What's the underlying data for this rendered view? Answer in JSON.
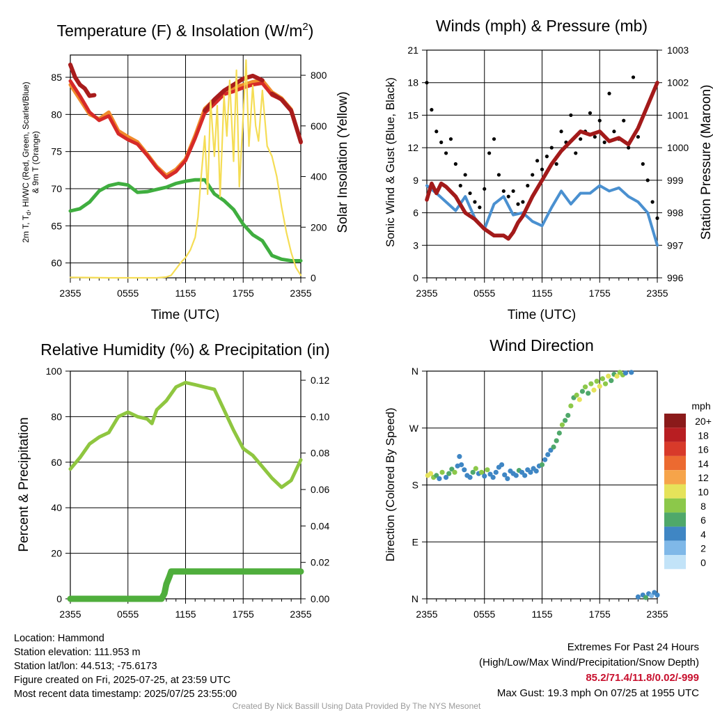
{
  "chart_data": [
    {
      "type": "line",
      "title": "Temperature (F) & Insolation (W/m²)",
      "xlabel": "Time (UTC)",
      "ylabel": "2m T, T_d, HI/WC (Red, Green, Scarlet/Blue) & 9m T (Orange)",
      "y2label": "Solar Insolation (Yellow)",
      "x_ticks": [
        "2355",
        "0555",
        "1155",
        "1755",
        "2355"
      ],
      "ylim": [
        58,
        88
      ],
      "y_ticks": [
        60,
        65,
        70,
        75,
        80,
        85
      ],
      "y2lim": [
        0,
        880
      ],
      "y2_ticks": [
        0,
        200,
        400,
        600,
        800
      ],
      "grid": true,
      "colors": {
        "temp": "#d62a28",
        "heat_index": "#a81c1c",
        "dewpoint": "#3fae3f",
        "temp9m": "#f08b2c",
        "insolation": "#f5dd55"
      },
      "series": [
        {
          "key": "temp",
          "axis": "left",
          "x": [
            0,
            1,
            2,
            3,
            4,
            5,
            6,
            7,
            8,
            9,
            10,
            11,
            12,
            13,
            14,
            15,
            16,
            17,
            18,
            19,
            20,
            21,
            22,
            23,
            24
          ],
          "y": [
            84.5,
            82.5,
            80.3,
            79.2,
            79.8,
            77.4,
            76.6,
            76.0,
            74.5,
            72.8,
            71.5,
            72.3,
            73.8,
            76.8,
            80.2,
            81.4,
            82.7,
            83.1,
            83.6,
            84.0,
            84.2,
            82.6,
            82.0,
            80.5,
            76.2
          ]
        },
        {
          "key": "temp9m",
          "axis": "left",
          "x": [
            0,
            1,
            2,
            3,
            4,
            5,
            6,
            7,
            8,
            9,
            10,
            11,
            12,
            13,
            14,
            15,
            16,
            17,
            18,
            19,
            20,
            21,
            22,
            23,
            24
          ],
          "y": [
            84.0,
            82.0,
            80.0,
            79.4,
            80.3,
            77.8,
            77.0,
            76.3,
            74.7,
            73.0,
            71.8,
            72.6,
            74.0,
            77.2,
            80.8,
            82.0,
            83.2,
            83.6,
            84.0,
            84.4,
            84.6,
            83.0,
            82.2,
            80.7,
            76.4
          ]
        },
        {
          "key": "heat_index",
          "axis": "left",
          "x": [
            0,
            0.5,
            1,
            1.5,
            2,
            2.5,
            3,
            3.4,
            13.6,
            14,
            15,
            16,
            17,
            18,
            19,
            20,
            20.3,
            21,
            22,
            23,
            24
          ],
          "y": [
            86.7,
            85.0,
            84.0,
            83.5,
            82.5,
            82.6,
            null,
            82.0,
            null,
            80.5,
            82.0,
            83.2,
            84.0,
            84.8,
            85.2,
            84.6,
            null,
            82.8,
            82.0,
            80.5,
            76.3
          ]
        },
        {
          "key": "dewpoint",
          "axis": "left",
          "x": [
            0,
            1,
            2,
            3,
            4,
            5,
            6,
            7,
            8,
            9,
            10,
            11,
            12,
            13,
            14,
            15,
            16,
            17,
            18,
            19,
            20,
            21,
            22,
            23,
            24
          ],
          "y": [
            67.0,
            67.3,
            68.2,
            69.7,
            70.4,
            70.7,
            70.5,
            69.5,
            69.6,
            69.9,
            70.2,
            70.7,
            71.0,
            71.2,
            71.2,
            69.3,
            68.4,
            67.2,
            65.2,
            63.8,
            63.0,
            61.0,
            60.5,
            60.3,
            60.3
          ]
        },
        {
          "key": "insolation",
          "axis": "right",
          "x": [
            0,
            2,
            4,
            6,
            8,
            9,
            10,
            10.5,
            11,
            11.5,
            12,
            12.5,
            13,
            13.3,
            13.6,
            14,
            14.3,
            14.6,
            15,
            15.3,
            15.6,
            16,
            16.3,
            16.6,
            17,
            17.3,
            17.6,
            18,
            18.3,
            18.6,
            19,
            19.3,
            19.6,
            20,
            20.5,
            21,
            21.5,
            22,
            22.5,
            23,
            23.5,
            24
          ],
          "y": [
            2,
            1,
            0,
            0,
            0,
            0,
            3,
            10,
            35,
            60,
            80,
            110,
            160,
            240,
            390,
            560,
            330,
            700,
            480,
            680,
            320,
            720,
            560,
            780,
            460,
            820,
            360,
            640,
            860,
            520,
            760,
            600,
            540,
            740,
            520,
            480,
            400,
            280,
            180,
            100,
            40,
            10
          ]
        }
      ]
    },
    {
      "type": "line",
      "title": "Winds (mph) & Pressure (mb)",
      "xlabel": "Time (UTC)",
      "ylabel": "Sonic Wind & Gust (Blue, Black)",
      "y2label": "Station Pressure (Maroon)",
      "x_ticks": [
        "2355",
        "0555",
        "1155",
        "1755",
        "2355"
      ],
      "ylim": [
        0,
        21
      ],
      "y_ticks": [
        0,
        3,
        6,
        9,
        12,
        15,
        18,
        21
      ],
      "y2lim": [
        996,
        1003
      ],
      "y2_ticks": [
        996,
        997,
        998,
        999,
        1000,
        1001,
        1002,
        1003
      ],
      "grid": true,
      "colors": {
        "wind": "#4a90d0",
        "gust": "#000000",
        "pressure": "#a31a1a"
      },
      "series": [
        {
          "key": "wind",
          "axis": "left",
          "x": [
            0,
            1,
            2,
            3,
            4,
            5,
            6,
            7,
            8,
            9,
            10,
            11,
            12,
            13,
            14,
            15,
            16,
            17,
            18,
            19,
            20,
            21,
            22,
            23,
            24
          ],
          "y": [
            8.5,
            7.8,
            7.0,
            6.2,
            7.5,
            5.5,
            4.5,
            6.8,
            7.5,
            5.8,
            6.0,
            5.2,
            4.8,
            6.5,
            8.0,
            6.8,
            7.8,
            7.8,
            8.5,
            8.0,
            8.3,
            7.5,
            7.0,
            6.0,
            3.0
          ]
        },
        {
          "key": "gust",
          "axis": "left",
          "x": [
            0,
            0.5,
            1,
            1.5,
            2,
            2.5,
            3,
            3.5,
            4,
            4.5,
            5,
            5.5,
            6,
            6.5,
            7,
            7.5,
            8,
            8.5,
            9,
            9.5,
            10,
            10.5,
            11,
            11.5,
            12,
            12.5,
            13,
            13.5,
            14,
            14.5,
            15,
            15.5,
            16,
            16.5,
            17,
            17.5,
            18,
            18.5,
            19,
            19.5,
            20,
            20.5,
            21,
            21.5,
            22,
            22.5,
            23,
            23.5,
            24
          ],
          "y": [
            18,
            15.5,
            13.5,
            12.5,
            11.5,
            12.8,
            10.5,
            8.5,
            9.5,
            7.8,
            7.0,
            6.5,
            8.2,
            11.5,
            12.8,
            9.5,
            8.0,
            7.5,
            8.0,
            6.8,
            7.0,
            8.5,
            9.5,
            10.8,
            10.0,
            11.2,
            12.0,
            10.5,
            13.5,
            12.5,
            15.0,
            11.5,
            12.8,
            13.5,
            15.2,
            13.0,
            14.5,
            12.5,
            17.0,
            13.5,
            12.8,
            14.5,
            12.0,
            18.5,
            13.0,
            10.5,
            9.0,
            7.0,
            5.5
          ]
        },
        {
          "key": "pressure",
          "axis": "right",
          "x": [
            0,
            0.5,
            1,
            1.5,
            2,
            3,
            4,
            5,
            6,
            7,
            8,
            8.5,
            9,
            9.5,
            10,
            11,
            12,
            13,
            14,
            15,
            16,
            17,
            18,
            19,
            20,
            21,
            22,
            23,
            24
          ],
          "y": [
            998.4,
            998.9,
            998.6,
            998.9,
            998.8,
            998.5,
            998.0,
            997.8,
            997.5,
            997.3,
            997.3,
            997.2,
            997.4,
            997.7,
            997.9,
            998.5,
            999.0,
            999.5,
            999.9,
            1000.2,
            1000.5,
            1000.4,
            1000.5,
            1000.2,
            1000.3,
            1000.1,
            1000.6,
            1001.3,
            1002.0
          ]
        }
      ]
    },
    {
      "type": "line",
      "title": "Relative Humidity (%) & Precipitation (in)",
      "xlabel": "",
      "ylabel": "Percent & Precipitation",
      "x_ticks": [
        "2355",
        "0555",
        "1155",
        "1755",
        "2355"
      ],
      "ylim": [
        0,
        100
      ],
      "y_ticks": [
        0,
        20,
        40,
        60,
        80,
        100
      ],
      "y2lim": [
        0,
        0.125
      ],
      "y2_ticks": [
        "0.00",
        "0.02",
        "0.04",
        "0.06",
        "0.08",
        "0.10",
        "0.12"
      ],
      "grid": true,
      "colors": {
        "rh": "#8fc640",
        "precip": "#4fae3c"
      },
      "series": [
        {
          "key": "rh",
          "axis": "left",
          "x": [
            0,
            1,
            2,
            3,
            4,
            5,
            6,
            7,
            8,
            8.5,
            9,
            10,
            11,
            12,
            13,
            14,
            15,
            16,
            17,
            18,
            19,
            20,
            21,
            22,
            23,
            24
          ],
          "y": [
            57,
            62,
            68,
            71,
            73,
            80,
            82,
            80,
            79,
            77,
            83,
            87,
            93,
            95,
            94,
            93,
            92,
            83,
            74,
            66,
            63,
            58,
            53,
            49,
            52,
            61
          ]
        },
        {
          "key": "precip",
          "axis": "right",
          "x": [
            0,
            9.5,
            9.8,
            10.0,
            10.3,
            10.5,
            24
          ],
          "y": [
            0,
            0,
            0.003,
            0.008,
            0.012,
            0.015,
            0.015
          ]
        }
      ]
    },
    {
      "type": "scatter",
      "title": "Wind Direction",
      "xlabel": "",
      "ylabel": "Direction (Colored By Speed)",
      "x_ticks": [
        "2355",
        "0555",
        "1155",
        "1755",
        "2355"
      ],
      "y_ticks": [
        "N",
        "E",
        "S",
        "W",
        "N"
      ],
      "ylim": [
        0,
        360
      ],
      "grid": true,
      "legend": {
        "title": "mph",
        "labels": [
          "20+",
          "18",
          "16",
          "14",
          "12",
          "10",
          "8",
          "6",
          "4",
          "2",
          "0"
        ],
        "colors": [
          "#8b1a1a",
          "#b81e22",
          "#d83a2a",
          "#ec6a30",
          "#f6a44a",
          "#e6e35a",
          "#8cc84a",
          "#4fa86a",
          "#3f86c4",
          "#7fb8e8",
          "#c2e3f8"
        ]
      },
      "points": [
        [
          0.1,
          195,
          11
        ],
        [
          0.4,
          198,
          10
        ],
        [
          0.7,
          192,
          8
        ],
        [
          1.0,
          195,
          7
        ],
        [
          1.3,
          190,
          5
        ],
        [
          1.6,
          200,
          8
        ],
        [
          2.0,
          192,
          4
        ],
        [
          2.3,
          198,
          6
        ],
        [
          2.6,
          205,
          7
        ],
        [
          2.9,
          200,
          8
        ],
        [
          3.2,
          210,
          4
        ],
        [
          3.4,
          225,
          4
        ],
        [
          3.6,
          212,
          5
        ],
        [
          3.9,
          204,
          4
        ],
        [
          4.2,
          195,
          4
        ],
        [
          4.5,
          192,
          4
        ],
        [
          4.8,
          200,
          6
        ],
        [
          5.1,
          206,
          8
        ],
        [
          5.4,
          198,
          5
        ],
        [
          5.7,
          200,
          8
        ],
        [
          6.0,
          194,
          4
        ],
        [
          6.3,
          204,
          8
        ],
        [
          6.6,
          197,
          5
        ],
        [
          6.9,
          192,
          4
        ],
        [
          7.2,
          200,
          5
        ],
        [
          7.5,
          208,
          4
        ],
        [
          7.8,
          212,
          4
        ],
        [
          8.1,
          196,
          4
        ],
        [
          8.4,
          190,
          4
        ],
        [
          8.7,
          202,
          5
        ],
        [
          9.0,
          198,
          4
        ],
        [
          9.3,
          195,
          4
        ],
        [
          9.6,
          203,
          7
        ],
        [
          9.9,
          200,
          4
        ],
        [
          10.2,
          195,
          5
        ],
        [
          10.5,
          204,
          4
        ],
        [
          10.8,
          200,
          5
        ],
        [
          11.1,
          206,
          4
        ],
        [
          11.4,
          202,
          4
        ],
        [
          11.7,
          210,
          5
        ],
        [
          12.0,
          212,
          6
        ],
        [
          12.3,
          220,
          4
        ],
        [
          12.6,
          228,
          4
        ],
        [
          12.9,
          235,
          5
        ],
        [
          13.2,
          240,
          6
        ],
        [
          13.5,
          250,
          7
        ],
        [
          13.8,
          262,
          7
        ],
        [
          14.1,
          275,
          8
        ],
        [
          14.4,
          282,
          6
        ],
        [
          14.7,
          290,
          6
        ],
        [
          15.0,
          305,
          8
        ],
        [
          15.3,
          318,
          7
        ],
        [
          15.6,
          322,
          9
        ],
        [
          15.9,
          315,
          10
        ],
        [
          16.2,
          328,
          7
        ],
        [
          16.5,
          335,
          8
        ],
        [
          16.8,
          325,
          6
        ],
        [
          17.1,
          340,
          9
        ],
        [
          17.4,
          330,
          10
        ],
        [
          17.7,
          344,
          8
        ],
        [
          18.0,
          336,
          11
        ],
        [
          18.3,
          348,
          9
        ],
        [
          18.6,
          340,
          8
        ],
        [
          18.9,
          352,
          10
        ],
        [
          19.2,
          345,
          6
        ],
        [
          19.5,
          355,
          7
        ],
        [
          19.8,
          352,
          10
        ],
        [
          20.1,
          358,
          9
        ],
        [
          20.4,
          354,
          8
        ],
        [
          20.7,
          357,
          5
        ],
        [
          21.3,
          358,
          4
        ],
        [
          22.0,
          3,
          4
        ],
        [
          22.5,
          6,
          4
        ],
        [
          22.8,
          2,
          6
        ],
        [
          23.1,
          8,
          4
        ],
        [
          23.4,
          5,
          3
        ],
        [
          23.7,
          10,
          4
        ],
        [
          24.0,
          6,
          4
        ]
      ]
    }
  ],
  "footer": {
    "location": "Location: Hammond",
    "elevation": "Station elevation: 111.953 m",
    "latlon": "Station lat/lon: 44.513; -75.6173",
    "created": "Figure created on Fri, 2025-07-25, at 23:59 UTC",
    "recent": "Most recent data timestamp: 2025/07/25 23:55:00",
    "extremes_title": "Extremes For Past 24 Hours",
    "extremes_sub": "(High/Low/Max Wind/Precipitation/Snow Depth)",
    "extremes_values": "85.2/71.4/11.8/0.02/-999",
    "max_gust": "Max Gust: 19.3 mph On 07/25 at 1955 UTC",
    "credit": "Created By Nick Bassill Using Data Provided By The NYS Mesonet"
  }
}
